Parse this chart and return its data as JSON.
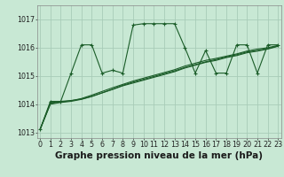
{
  "title": "Graphe pression niveau de la mer (hPa)",
  "bg_color": "#c8e8d4",
  "grid_color": "#a8ccb8",
  "line_color": "#1a5c28",
  "xlim": [
    -0.3,
    23.3
  ],
  "ylim": [
    1012.8,
    1017.5
  ],
  "yticks": [
    1013,
    1014,
    1015,
    1016,
    1017
  ],
  "xticks": [
    0,
    1,
    2,
    3,
    4,
    5,
    6,
    7,
    8,
    9,
    10,
    11,
    12,
    13,
    14,
    15,
    16,
    17,
    18,
    19,
    20,
    21,
    22,
    23
  ],
  "main_series": [
    1013.1,
    1014.1,
    1014.1,
    1015.1,
    1016.1,
    1016.1,
    1015.1,
    1015.2,
    1015.1,
    1016.8,
    1016.85,
    1016.85,
    1016.85,
    1016.85,
    1016.0,
    1015.1,
    1015.9,
    1015.1,
    1015.1,
    1016.1,
    1016.1,
    1015.1,
    1016.1,
    1016.1
  ],
  "trend1": [
    1013.1,
    1014.05,
    1014.1,
    1014.13,
    1014.18,
    1014.28,
    1014.4,
    1014.52,
    1014.65,
    1014.75,
    1014.85,
    1014.95,
    1015.05,
    1015.15,
    1015.28,
    1015.38,
    1015.48,
    1015.55,
    1015.65,
    1015.72,
    1015.82,
    1015.88,
    1015.95,
    1016.05
  ],
  "trend2": [
    1013.1,
    1014.02,
    1014.08,
    1014.12,
    1014.2,
    1014.32,
    1014.45,
    1014.58,
    1014.7,
    1014.82,
    1014.92,
    1015.02,
    1015.12,
    1015.22,
    1015.35,
    1015.45,
    1015.55,
    1015.62,
    1015.7,
    1015.78,
    1015.88,
    1015.95,
    1016.0,
    1016.08
  ],
  "trend3": [
    1013.1,
    1014.0,
    1014.06,
    1014.1,
    1014.17,
    1014.27,
    1014.4,
    1014.53,
    1014.67,
    1014.78,
    1014.88,
    1014.98,
    1015.08,
    1015.18,
    1015.3,
    1015.4,
    1015.5,
    1015.58,
    1015.67,
    1015.75,
    1015.85,
    1015.9,
    1015.97,
    1016.06
  ],
  "title_fontsize": 7.5,
  "tick_fontsize": 5.8
}
